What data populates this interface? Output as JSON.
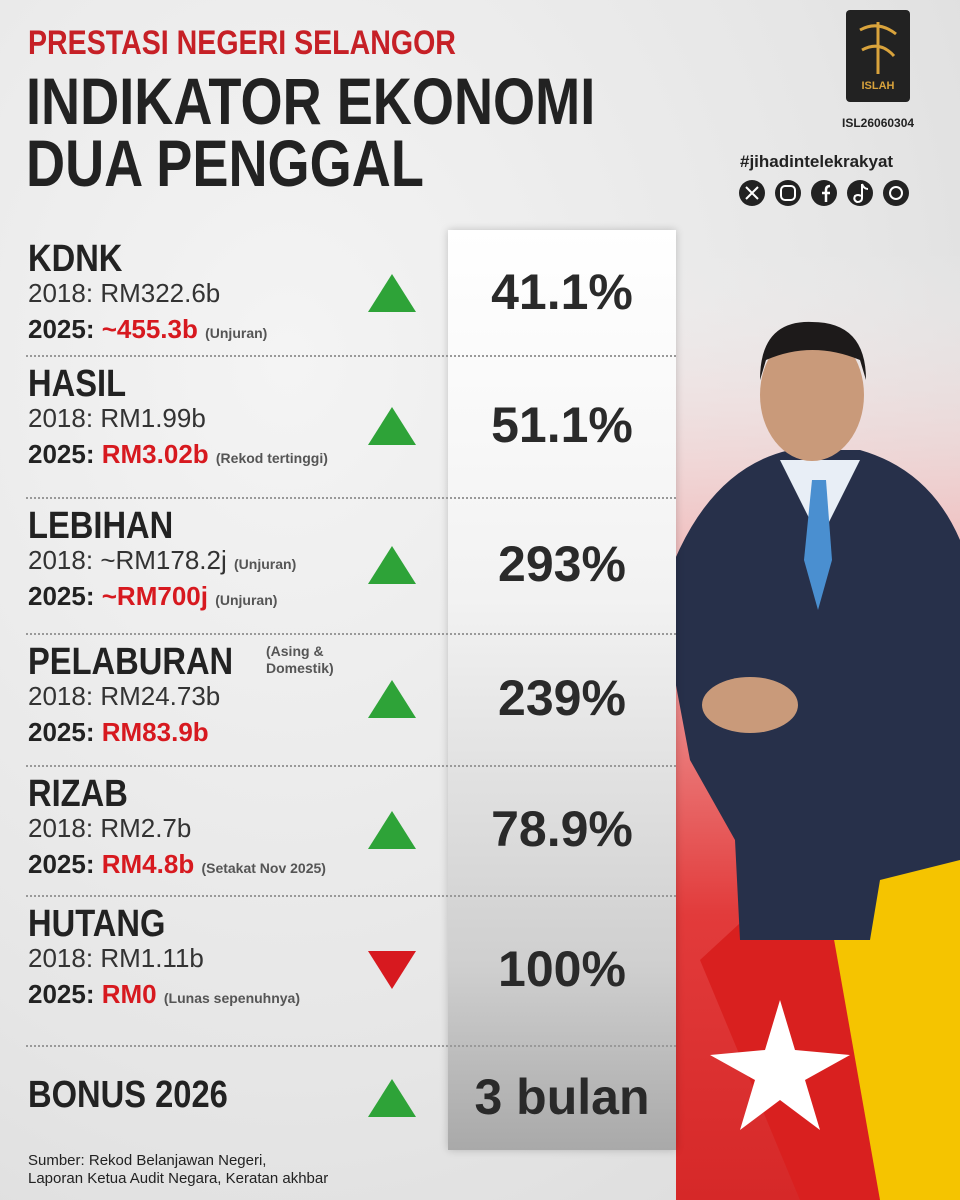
{
  "header": {
    "kicker": "PRESTASI NEGERI SELANGOR",
    "title_lines": [
      "INDIKATOR EKONOMI",
      "DUA PENGGAL"
    ]
  },
  "brand": {
    "logo_label": "ISLAH",
    "code": "ISL26060304",
    "hashtag": "#jihadintelekrakyat"
  },
  "rows": [
    {
      "name": "KDNK",
      "line_2018": {
        "label": "2018:",
        "value": "RM322.6b"
      },
      "line_2025": {
        "label": "2025:",
        "value": "~455.3b",
        "note": "(Unjuran)"
      },
      "trend": "up",
      "change": "41.1%"
    },
    {
      "name": "HASIL",
      "line_2018": {
        "label": "2018:",
        "value": "RM1.99b"
      },
      "line_2025": {
        "label": "2025:",
        "value": "RM3.02b",
        "note": "(Rekod tertinggi)"
      },
      "trend": "up",
      "change": "51.1%"
    },
    {
      "name": "LEBIHAN",
      "line_2018": {
        "label": "2018:",
        "value": "~RM178.2j",
        "note": "(Unjuran)"
      },
      "line_2025": {
        "label": "2025:",
        "value": "~RM700j",
        "note": "(Unjuran)"
      },
      "trend": "up",
      "change": "293%"
    },
    {
      "name": "PELABURAN",
      "name_note": "(Asing & Domestik)",
      "line_2018": {
        "label": "2018:",
        "value": "RM24.73b"
      },
      "line_2025": {
        "label": "2025:",
        "value": "RM83.9b"
      },
      "trend": "up",
      "change": "239%"
    },
    {
      "name": "RIZAB",
      "line_2018": {
        "label": "2018:",
        "value": "RM2.7b"
      },
      "line_2025": {
        "label": "2025:",
        "value": "RM4.8b",
        "note": "(Setakat Nov 2025)"
      },
      "trend": "up",
      "change": "78.9%"
    },
    {
      "name": "HUTANG",
      "line_2018": {
        "label": "2018:",
        "value": "RM1.11b"
      },
      "line_2025": {
        "label": "2025:",
        "value": "RM0",
        "note": "(Lunas sepenuhnya)"
      },
      "trend": "down",
      "change": "100%"
    },
    {
      "name": "BONUS 2026",
      "trend": "up",
      "change": "3 bulan"
    }
  ],
  "source": {
    "lines": [
      "Sumber: Rekod Belanjawan Negeri,",
      "Laporan Ketua Audit Negara, Keratan akhbar"
    ]
  }
}
